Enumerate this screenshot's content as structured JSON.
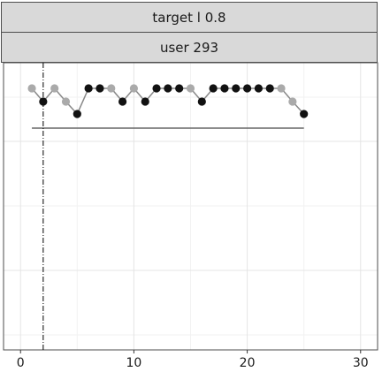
{
  "facets": {
    "top_label": "target l 0.8",
    "bottom_label": "user 293"
  },
  "chart_data": {
    "type": "line",
    "title": "",
    "xlabel": "",
    "ylabel": "",
    "xlim": [
      -1.5,
      31.5
    ],
    "x_ticks": [
      0,
      10,
      20,
      30
    ],
    "grid": true,
    "legend": "none",
    "vline_x": 2,
    "hline": {
      "x_start": 1,
      "x_end": 25
    },
    "series": [
      {
        "x": [
          1,
          2,
          3,
          4,
          5,
          6,
          7,
          8,
          9,
          10,
          11,
          12,
          13,
          14,
          15,
          16,
          17,
          18,
          19,
          20,
          21,
          22,
          23,
          24,
          25
        ],
        "y": [
          1,
          0,
          1,
          0,
          -1,
          1,
          1,
          1,
          0,
          1,
          0,
          1,
          1,
          1,
          1,
          0,
          1,
          1,
          1,
          1,
          1,
          1,
          1,
          0,
          -1
        ],
        "point_color": [
          "light",
          "dark",
          "light",
          "light",
          "dark",
          "dark",
          "dark",
          "light",
          "dark",
          "light",
          "dark",
          "dark",
          "dark",
          "dark",
          "light",
          "dark",
          "dark",
          "dark",
          "dark",
          "dark",
          "dark",
          "dark",
          "light",
          "light",
          "dark"
        ]
      }
    ],
    "colors": {
      "dark_point": "#111111",
      "light_point": "#aaaaaa",
      "line": "#888888",
      "hline": "#666666",
      "vline": "#000000",
      "grid_major": "#e5e5e5",
      "grid_minor": "#f2f2f2",
      "panel_border": "#4d4d4d"
    }
  }
}
